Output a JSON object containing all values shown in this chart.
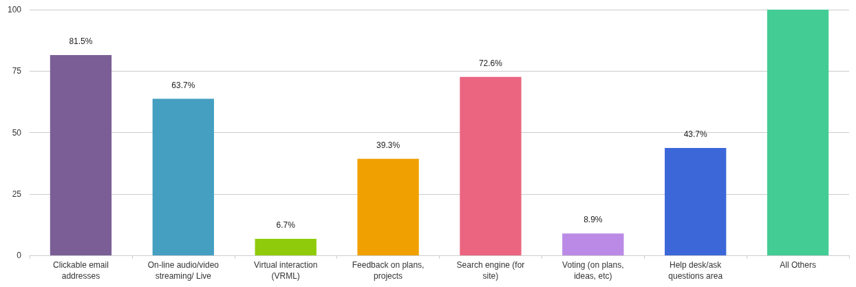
{
  "chart_data": {
    "type": "bar",
    "categories": [
      "Clickable email\naddresses",
      "On-line audio/video\nstreaming/ Live",
      "Virtual interaction\n(VRML)",
      "Feedback on plans,\nprojects",
      "Search engine (for\nsite)",
      "Voting (on plans,\nideas, etc)",
      "Help desk/ask\nquestions area",
      "All Others"
    ],
    "values": [
      81.5,
      63.7,
      6.7,
      39.3,
      72.6,
      8.9,
      43.7,
      100
    ],
    "colors": [
      "#7a5e95",
      "#459fc1",
      "#8fcb0a",
      "#f0a000",
      "#eb6581",
      "#bb8ae6",
      "#3b67d9",
      "#43cc94"
    ],
    "value_labels": [
      "81.5%",
      "63.7%",
      "6.7%",
      "39.3%",
      "72.6%",
      "8.9%",
      "43.7%",
      null
    ],
    "ylim": [
      0,
      100
    ],
    "yticks": [
      0,
      25,
      50,
      75,
      100
    ],
    "grid": "y"
  }
}
